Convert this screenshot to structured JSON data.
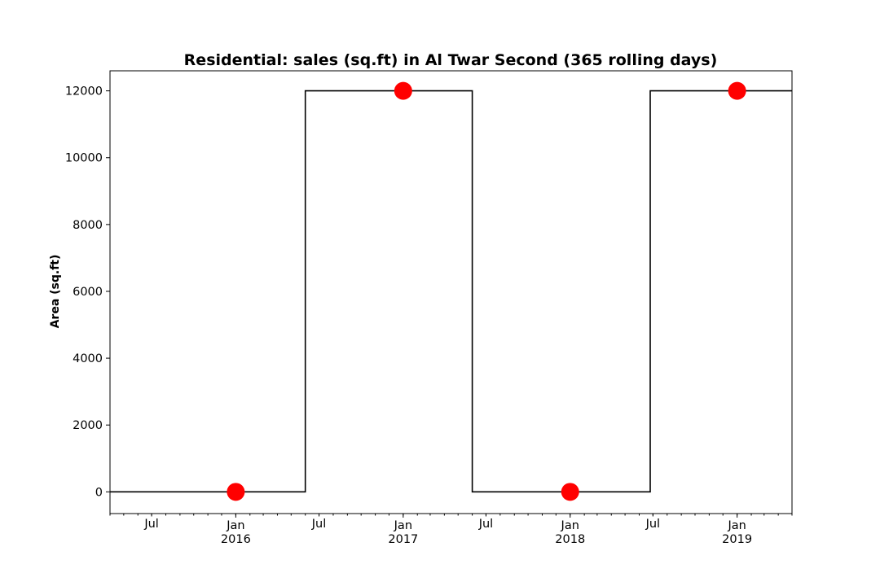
{
  "chart_data": {
    "type": "line",
    "title": "Residential: sales (sq.ft) in Al Twar Second (365 rolling days)",
    "xlabel": "",
    "ylabel": "Area (sq.ft)",
    "line_style": "step",
    "xlim": [
      "2015-04-01",
      "2019-05-01"
    ],
    "ylim": [
      -650,
      12600
    ],
    "yticks": [
      0,
      2000,
      4000,
      6000,
      8000,
      10000,
      12000
    ],
    "xticks_major": [
      {
        "date": "2016-01-01",
        "month": "Jan",
        "year": "2016"
      },
      {
        "date": "2017-01-01",
        "month": "Jan",
        "year": "2017"
      },
      {
        "date": "2018-01-01",
        "month": "Jan",
        "year": "2018"
      },
      {
        "date": "2019-01-01",
        "month": "Jan",
        "year": "2019"
      }
    ],
    "xticks_mid": [
      {
        "date": "2015-07-01",
        "month": "Jul"
      },
      {
        "date": "2016-07-01",
        "month": "Jul"
      },
      {
        "date": "2017-07-01",
        "month": "Jul"
      },
      {
        "date": "2018-07-01",
        "month": "Jul"
      }
    ],
    "grid": false,
    "series": [
      {
        "x": [
          "2015-04-01",
          "2016-06-01",
          "2016-06-01",
          "2017-06-01",
          "2017-06-01",
          "2018-06-25",
          "2018-06-25",
          "2019-05-01"
        ],
        "values": [
          0,
          0,
          12000,
          12000,
          0,
          0,
          12000,
          12000
        ],
        "color": "#000000"
      },
      {
        "x": [
          "2016-01-01",
          "2017-01-01",
          "2018-01-01",
          "2019-01-01"
        ],
        "values": [
          0,
          12000,
          0,
          12000
        ],
        "marker": "circle",
        "color": "#ff0000"
      }
    ]
  }
}
